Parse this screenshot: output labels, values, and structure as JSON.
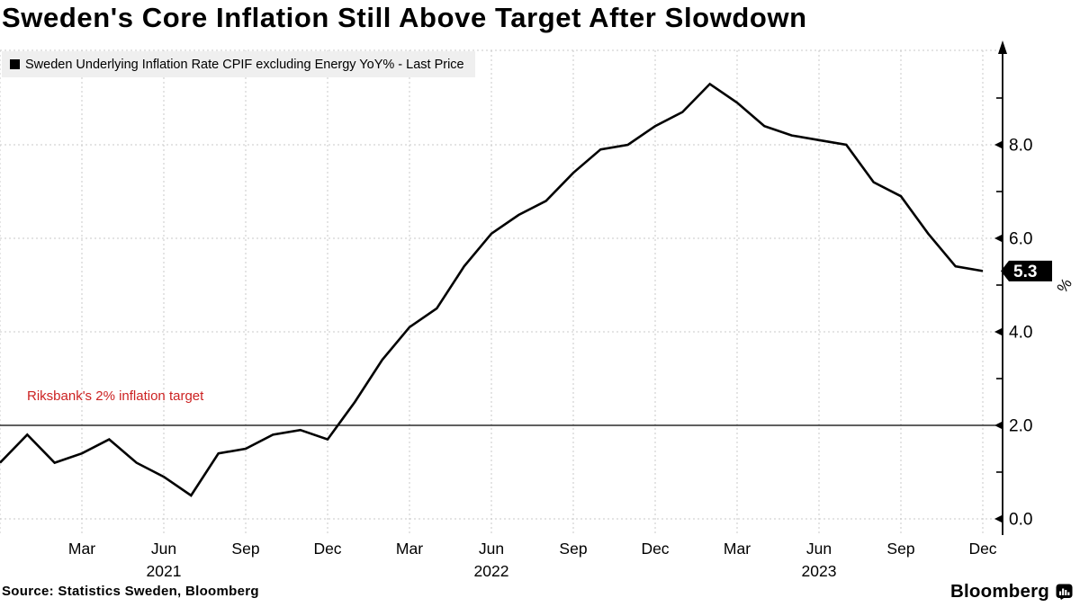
{
  "title": "Sweden's Core Inflation Still Above Target After Slowdown",
  "legend": {
    "marker_icon": "black-square-series-marker",
    "label": "Sweden Underlying Inflation Rate CPIF excluding Energy YoY% - Last Price"
  },
  "annotation": {
    "text": "Riksbank's 2% inflation target",
    "color": "#cc2222",
    "at_value": 2.0
  },
  "last_price": {
    "value": "5.3"
  },
  "source": "Source: Statistics Sweden, Bloomberg",
  "branding": {
    "wordmark": "Bloomberg",
    "icon": "bloomberg-bar-chart-bubble-icon"
  },
  "colors": {
    "line": "#000000",
    "grid": "#c9c9c9",
    "axis": "#000000",
    "legend_bg": "#efefef",
    "badge_bg": "#000000",
    "badge_text": "#ffffff",
    "annotation_red": "#cc2222"
  },
  "chart_data": {
    "type": "line",
    "title": "Sweden's Core Inflation Still Above Target After Slowdown",
    "ylabel": "%",
    "frequency": "monthly",
    "x": [
      "2020-12",
      "2021-01",
      "2021-02",
      "2021-03",
      "2021-04",
      "2021-05",
      "2021-06",
      "2021-07",
      "2021-08",
      "2021-09",
      "2021-10",
      "2021-11",
      "2021-12",
      "2022-01",
      "2022-02",
      "2022-03",
      "2022-04",
      "2022-05",
      "2022-06",
      "2022-07",
      "2022-08",
      "2022-09",
      "2022-10",
      "2022-11",
      "2022-12",
      "2023-01",
      "2023-02",
      "2023-03",
      "2023-04",
      "2023-05",
      "2023-06",
      "2023-07",
      "2023-08",
      "2023-09",
      "2023-10",
      "2023-11",
      "2023-12"
    ],
    "series": [
      {
        "name": "Sweden Underlying Inflation Rate CPIF excluding Energy YoY% - Last Price",
        "color": "#000000",
        "values": [
          1.2,
          1.8,
          1.2,
          1.4,
          1.7,
          1.2,
          0.9,
          0.5,
          1.4,
          1.5,
          1.8,
          1.9,
          1.7,
          2.5,
          3.4,
          4.1,
          4.5,
          5.4,
          6.1,
          6.5,
          6.8,
          7.4,
          7.9,
          8.0,
          8.4,
          8.7,
          9.3,
          8.9,
          8.4,
          8.2,
          8.1,
          8.0,
          7.2,
          6.9,
          6.1,
          5.4,
          5.3
        ]
      }
    ],
    "last_value": 5.3,
    "target_line": 2.0,
    "ylim": [
      0,
      9.6
    ],
    "y_ticks": [
      {
        "value": 0,
        "label": "0.0"
      },
      {
        "value": 2,
        "label": "2.0"
      },
      {
        "value": 4,
        "label": "4.0"
      },
      {
        "value": 6,
        "label": "6.0"
      },
      {
        "value": 8,
        "label": "8.0"
      }
    ],
    "y_minor_ticks": [
      1,
      3,
      5,
      7,
      9
    ],
    "h_gridline_values": [
      0,
      4,
      6,
      8
    ],
    "x_gridline_months": [
      0,
      3,
      6,
      9,
      12,
      15,
      18,
      21,
      24,
      27,
      30,
      33,
      36
    ],
    "x_ticks": [
      {
        "m": 3,
        "label": "Mar"
      },
      {
        "m": 6,
        "label": "Jun",
        "year": "2021"
      },
      {
        "m": 9,
        "label": "Sep"
      },
      {
        "m": 12,
        "label": "Dec"
      },
      {
        "m": 15,
        "label": "Mar"
      },
      {
        "m": 18,
        "label": "Jun",
        "year": "2022"
      },
      {
        "m": 21,
        "label": "Sep"
      },
      {
        "m": 24,
        "label": "Dec"
      },
      {
        "m": 27,
        "label": "Mar"
      },
      {
        "m": 30,
        "label": "Jun",
        "year": "2023"
      },
      {
        "m": 33,
        "label": "Sep"
      },
      {
        "m": 36,
        "label": "Dec"
      }
    ],
    "grid": "dashed",
    "legend_position": "top-left",
    "axis_side": "right"
  }
}
